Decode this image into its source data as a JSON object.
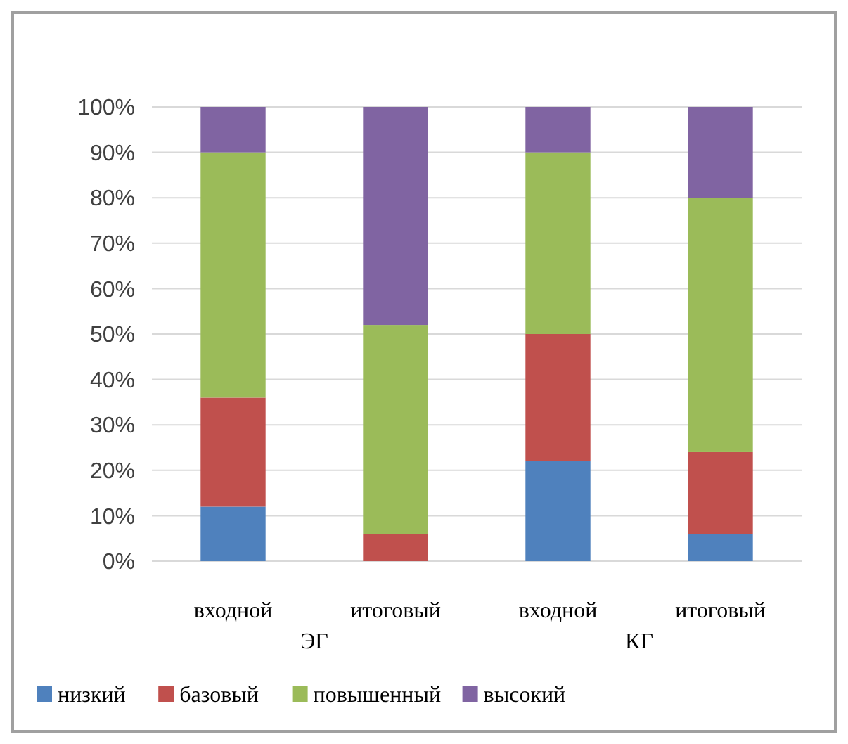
{
  "chart_data": {
    "type": "bar",
    "stacked": true,
    "categories": [
      "входной",
      "итоговый",
      "входной",
      "итоговый"
    ],
    "annotations": [
      "ЭГ",
      "КГ"
    ],
    "series": [
      {
        "name": "низкий",
        "color": "#4f81bd",
        "values": [
          12,
          0,
          22,
          6
        ]
      },
      {
        "name": "базовый",
        "color": "#c0504d",
        "values": [
          24,
          6,
          28,
          18
        ]
      },
      {
        "name": "повышенный",
        "color": "#9bbb59",
        "values": [
          54,
          46,
          40,
          56
        ]
      },
      {
        "name": "высокий",
        "color": "#8064a2",
        "values": [
          10,
          48,
          10,
          20
        ]
      }
    ],
    "ylim": [
      0,
      100
    ],
    "yticks": [
      {
        "value": 0,
        "label": "0%"
      },
      {
        "value": 10,
        "label": "10%"
      },
      {
        "value": 20,
        "label": "20%"
      },
      {
        "value": 30,
        "label": "30%"
      },
      {
        "value": 40,
        "label": "40%"
      },
      {
        "value": 50,
        "label": "50%"
      },
      {
        "value": 60,
        "label": "60%"
      },
      {
        "value": 70,
        "label": "70%"
      },
      {
        "value": 80,
        "label": "80%"
      },
      {
        "value": 90,
        "label": "90%"
      },
      {
        "value": 100,
        "label": "100%"
      }
    ],
    "grid": "y",
    "legend": "bottom"
  }
}
